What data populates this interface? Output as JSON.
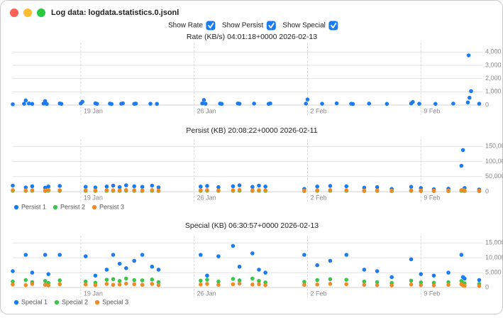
{
  "window": {
    "title": "Log data: logdata.statistics.0.jsonl"
  },
  "controls": [
    {
      "label": "Show Rate",
      "checked": true
    },
    {
      "label": "Show Persist",
      "checked": true
    },
    {
      "label": "Show Special",
      "checked": true
    }
  ],
  "chart_data": [
    {
      "type": "scatter",
      "title": "Rate (KB/s)  04:01:18+0000 2026-02-13",
      "color": "#1b7cf2",
      "grid": true,
      "x": [
        14.8,
        15.5,
        15.6,
        15.8,
        16.0,
        16.7,
        16.8,
        16.9,
        17.7,
        17.8,
        19.0,
        19.1,
        19.9,
        20.0,
        20.8,
        20.9,
        21.5,
        21.6,
        22.3,
        22.4,
        23.3,
        23.7,
        26.5,
        26.6,
        26.7,
        27.6,
        27.7,
        28.7,
        28.8,
        29.7,
        30.6,
        30.7,
        32.9,
        33.0,
        33.9,
        34.8,
        35.7,
        35.8,
        36.8,
        37.9,
        39.4,
        39.5,
        39.9,
        40.9,
        42.0,
        42.9,
        42.95,
        43.0,
        43.1,
        43.6
      ],
      "values": [
        60,
        100,
        350,
        120,
        90,
        110,
        300,
        80,
        120,
        90,
        120,
        250,
        130,
        90,
        110,
        80,
        100,
        130,
        90,
        110,
        100,
        90,
        120,
        380,
        100,
        110,
        90,
        120,
        100,
        110,
        90,
        120,
        110,
        420,
        100,
        130,
        100,
        80,
        110,
        90,
        120,
        230,
        100,
        90,
        110,
        200,
        3750,
        550,
        1050,
        100
      ],
      "xlim": [
        14.8,
        43.8
      ],
      "xticks": [
        {
          "value": 19,
          "label": "19 Jan"
        },
        {
          "value": 26,
          "label": "26 Jan"
        },
        {
          "value": 33,
          "label": "2 Feb"
        },
        {
          "value": 40,
          "label": "9 Feb"
        }
      ],
      "ylim": [
        0,
        4500
      ],
      "yticks": [
        0,
        {
          "value": 1000,
          "label": "1,000"
        },
        {
          "value": 2000,
          "label": "2,000"
        },
        {
          "value": 3000,
          "label": "3,000"
        },
        {
          "value": 4000,
          "label": "4,000"
        }
      ]
    },
    {
      "type": "scatter",
      "title": "Persist (KB)  20:08:22+0000 2026-02-11",
      "grid": true,
      "x": [
        14.8,
        15.6,
        16.0,
        16.8,
        17.0,
        17.7,
        19.3,
        19.9,
        20.6,
        21.0,
        21.4,
        21.8,
        22.3,
        22.8,
        23.4,
        23.8,
        26.4,
        26.8,
        27.5,
        28.4,
        28.8,
        29.6,
        30.0,
        30.4,
        32.8,
        33.6,
        34.4,
        35.4,
        36.5,
        37.3,
        38.2,
        39.4,
        40.0,
        40.8,
        41.7,
        42.5,
        42.6,
        42.7,
        43.6
      ],
      "series": [
        {
          "name": "Persist 1",
          "color": "#1b7cf2",
          "values": [
            20000,
            14000,
            18000,
            13000,
            17000,
            19000,
            16000,
            14000,
            17000,
            20000,
            15000,
            21000,
            18000,
            16000,
            20000,
            14000,
            17000,
            19000,
            15000,
            18000,
            21000,
            16000,
            20000,
            17000,
            9000,
            17000,
            19000,
            18000,
            13000,
            15000,
            9000,
            16000,
            12000,
            8000,
            10000,
            86000,
            138000,
            12000,
            7000
          ]
        },
        {
          "name": "Persist 2",
          "color": "#3cc44b",
          "values": [
            3000,
            2500,
            2800,
            2200,
            3100,
            2600,
            2900,
            2400,
            3000,
            2700,
            2500,
            3200,
            2800,
            2600,
            3000,
            2400,
            2700,
            3100,
            2500,
            2900,
            3300,
            2600,
            3000,
            2700,
            2000,
            2800,
            3000,
            2900,
            2300,
            2500,
            2100,
            2600,
            2200,
            1900,
            2100,
            3000,
            3500,
            2400,
            1800
          ]
        },
        {
          "name": "Persist 3",
          "color": "#f08a24",
          "values": [
            5000,
            4200,
            4800,
            3900,
            5200,
            4600,
            4900,
            4100,
            5000,
            4700,
            4300,
            5400,
            4800,
            4400,
            5100,
            4000,
            4600,
            5200,
            4300,
            4900,
            5500,
            4400,
            5000,
            4700,
            3500,
            4800,
            5100,
            4900,
            3900,
            4200,
            3600,
            4500,
            3800,
            3300,
            3700,
            5000,
            5600,
            4000,
            3200
          ]
        }
      ],
      "xlim": [
        14.8,
        43.8
      ],
      "xticks": [
        {
          "value": 19,
          "label": "19 Jan"
        },
        {
          "value": 26,
          "label": "26 Jan"
        },
        {
          "value": 33,
          "label": "2 Feb"
        },
        {
          "value": 40,
          "label": "9 Feb"
        }
      ],
      "ylim": [
        0,
        165000
      ],
      "yticks": [
        0,
        {
          "value": 50000,
          "label": "50,000"
        },
        {
          "value": 100000,
          "label": "100,000"
        },
        {
          "value": 150000,
          "label": "150,000"
        }
      ]
    },
    {
      "type": "scatter",
      "title": "Special (KB)  06:30:57+0000 2026-02-13",
      "grid": true,
      "x": [
        14.8,
        15.6,
        16.0,
        16.8,
        17.0,
        17.7,
        19.3,
        19.9,
        20.6,
        21.0,
        21.4,
        21.8,
        22.3,
        22.8,
        23.4,
        23.8,
        26.4,
        26.8,
        27.5,
        28.4,
        28.8,
        29.6,
        30.0,
        30.4,
        32.8,
        33.6,
        34.4,
        35.4,
        36.5,
        37.3,
        38.2,
        39.4,
        40.0,
        40.8,
        41.7,
        42.5,
        42.6,
        42.7,
        43.6
      ],
      "series": [
        {
          "name": "Special 1",
          "color": "#1b7cf2",
          "values": [
            5500,
            11000,
            5000,
            11000,
            4500,
            11000,
            10500,
            4000,
            6000,
            11000,
            8000,
            6500,
            9000,
            11000,
            7000,
            6000,
            11000,
            4000,
            10500,
            14000,
            7000,
            11500,
            6000,
            5000,
            11000,
            7500,
            9000,
            11000,
            6000,
            5500,
            3500,
            9500,
            4500,
            4000,
            5000,
            11000,
            3500,
            3000,
            2500
          ]
        },
        {
          "name": "Special 2",
          "color": "#3cc44b",
          "values": [
            2000,
            2500,
            1800,
            2200,
            1500,
            2400,
            2000,
            1600,
            2600,
            2800,
            2200,
            3000,
            2500,
            2400,
            2700,
            1800,
            2300,
            2600,
            2000,
            2900,
            2400,
            3000,
            2200,
            1700,
            1900,
            2500,
            2800,
            2600,
            2000,
            1800,
            1500,
            2300,
            1700,
            1600,
            1800,
            2200,
            1500,
            1400,
            1200
          ]
        },
        {
          "name": "Special 3",
          "color": "#f08a24",
          "values": [
            1000,
            800,
            1200,
            900,
            700,
            1100,
            1000,
            800,
            1200,
            900,
            1000,
            1300,
            1100,
            900,
            1200,
            800,
            1000,
            1200,
            900,
            1100,
            1300,
            1000,
            1100,
            800,
            900,
            1000,
            1200,
            1100,
            900,
            800,
            700,
            1000,
            800,
            700,
            900,
            1100,
            700,
            600,
            500
          ]
        }
      ],
      "xlim": [
        14.8,
        43.8
      ],
      "xticks": [
        {
          "value": 19,
          "label": "19 Jan"
        },
        {
          "value": 26,
          "label": "26 Jan"
        },
        {
          "value": 33,
          "label": "2 Feb"
        },
        {
          "value": 40,
          "label": "9 Feb"
        }
      ],
      "ylim": [
        0,
        16500
      ],
      "yticks": [
        0,
        {
          "value": 5000,
          "label": "5,000"
        },
        {
          "value": 10000,
          "label": "10,000"
        },
        {
          "value": 15000,
          "label": "15,000"
        }
      ]
    }
  ]
}
